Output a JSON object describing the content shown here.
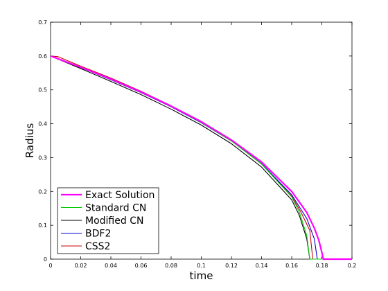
{
  "chart_data": {
    "type": "line",
    "xlabel": "time",
    "ylabel": "Radius",
    "xlim": [
      0,
      0.2
    ],
    "ylim": [
      0,
      0.7
    ],
    "xticks": [
      "0",
      "0.02",
      "0.04",
      "0.06",
      "0.08",
      "0.1",
      "0.12",
      "0.14",
      "0.16",
      "0.18",
      "0.2"
    ],
    "yticks": [
      "0",
      "0.1",
      "0.2",
      "0.3",
      "0.4",
      "0.5",
      "0.6",
      "0.7"
    ],
    "grid": false,
    "legend_position": "bottom-left",
    "series": [
      {
        "name": "Exact Solution",
        "color": "#ff00ff",
        "x": [
          0,
          0.02,
          0.04,
          0.06,
          0.08,
          0.1,
          0.12,
          0.14,
          0.16,
          0.17,
          0.175,
          0.178,
          0.18,
          0.181,
          0.2
        ],
        "y": [
          0.6,
          0.567,
          0.532,
          0.494,
          0.452,
          0.406,
          0.352,
          0.287,
          0.2,
          0.138,
          0.092,
          0.056,
          0.02,
          0.0,
          0.0
        ]
      },
      {
        "name": "Standard CN",
        "color": "#00cc00",
        "x": [
          0,
          0.02,
          0.04,
          0.06,
          0.08,
          0.1,
          0.12,
          0.14,
          0.16,
          0.165,
          0.17,
          0.172,
          0.2
        ],
        "y": [
          0.6,
          0.567,
          0.531,
          0.493,
          0.451,
          0.404,
          0.349,
          0.281,
          0.184,
          0.14,
          0.07,
          0.0,
          0.0
        ]
      },
      {
        "name": "Modified CN",
        "color": "#000000",
        "x": [
          0,
          0.02,
          0.04,
          0.06,
          0.08,
          0.1,
          0.12,
          0.14,
          0.16,
          0.165,
          0.17,
          0.172,
          0.2
        ],
        "y": [
          0.6,
          0.563,
          0.525,
          0.486,
          0.443,
          0.396,
          0.341,
          0.272,
          0.175,
          0.13,
          0.06,
          0.0,
          0.0
        ]
      },
      {
        "name": "BDF2",
        "color": "#0000cc",
        "x": [
          0,
          0.02,
          0.04,
          0.06,
          0.08,
          0.1,
          0.12,
          0.14,
          0.16,
          0.17,
          0.175,
          0.177,
          0.2
        ],
        "y": [
          0.6,
          0.566,
          0.53,
          0.492,
          0.45,
          0.403,
          0.349,
          0.282,
          0.19,
          0.12,
          0.06,
          0.0,
          0.0
        ]
      },
      {
        "name": "CSS2",
        "color": "#cc0000",
        "x": [
          0,
          0.005,
          0.02,
          0.04,
          0.06,
          0.08,
          0.1,
          0.12,
          0.14,
          0.16,
          0.166,
          0.172,
          0.174,
          0.2
        ],
        "y": [
          0.6,
          0.598,
          0.57,
          0.535,
          0.496,
          0.453,
          0.405,
          0.35,
          0.281,
          0.186,
          0.14,
          0.085,
          0.0,
          0.0
        ]
      }
    ]
  }
}
